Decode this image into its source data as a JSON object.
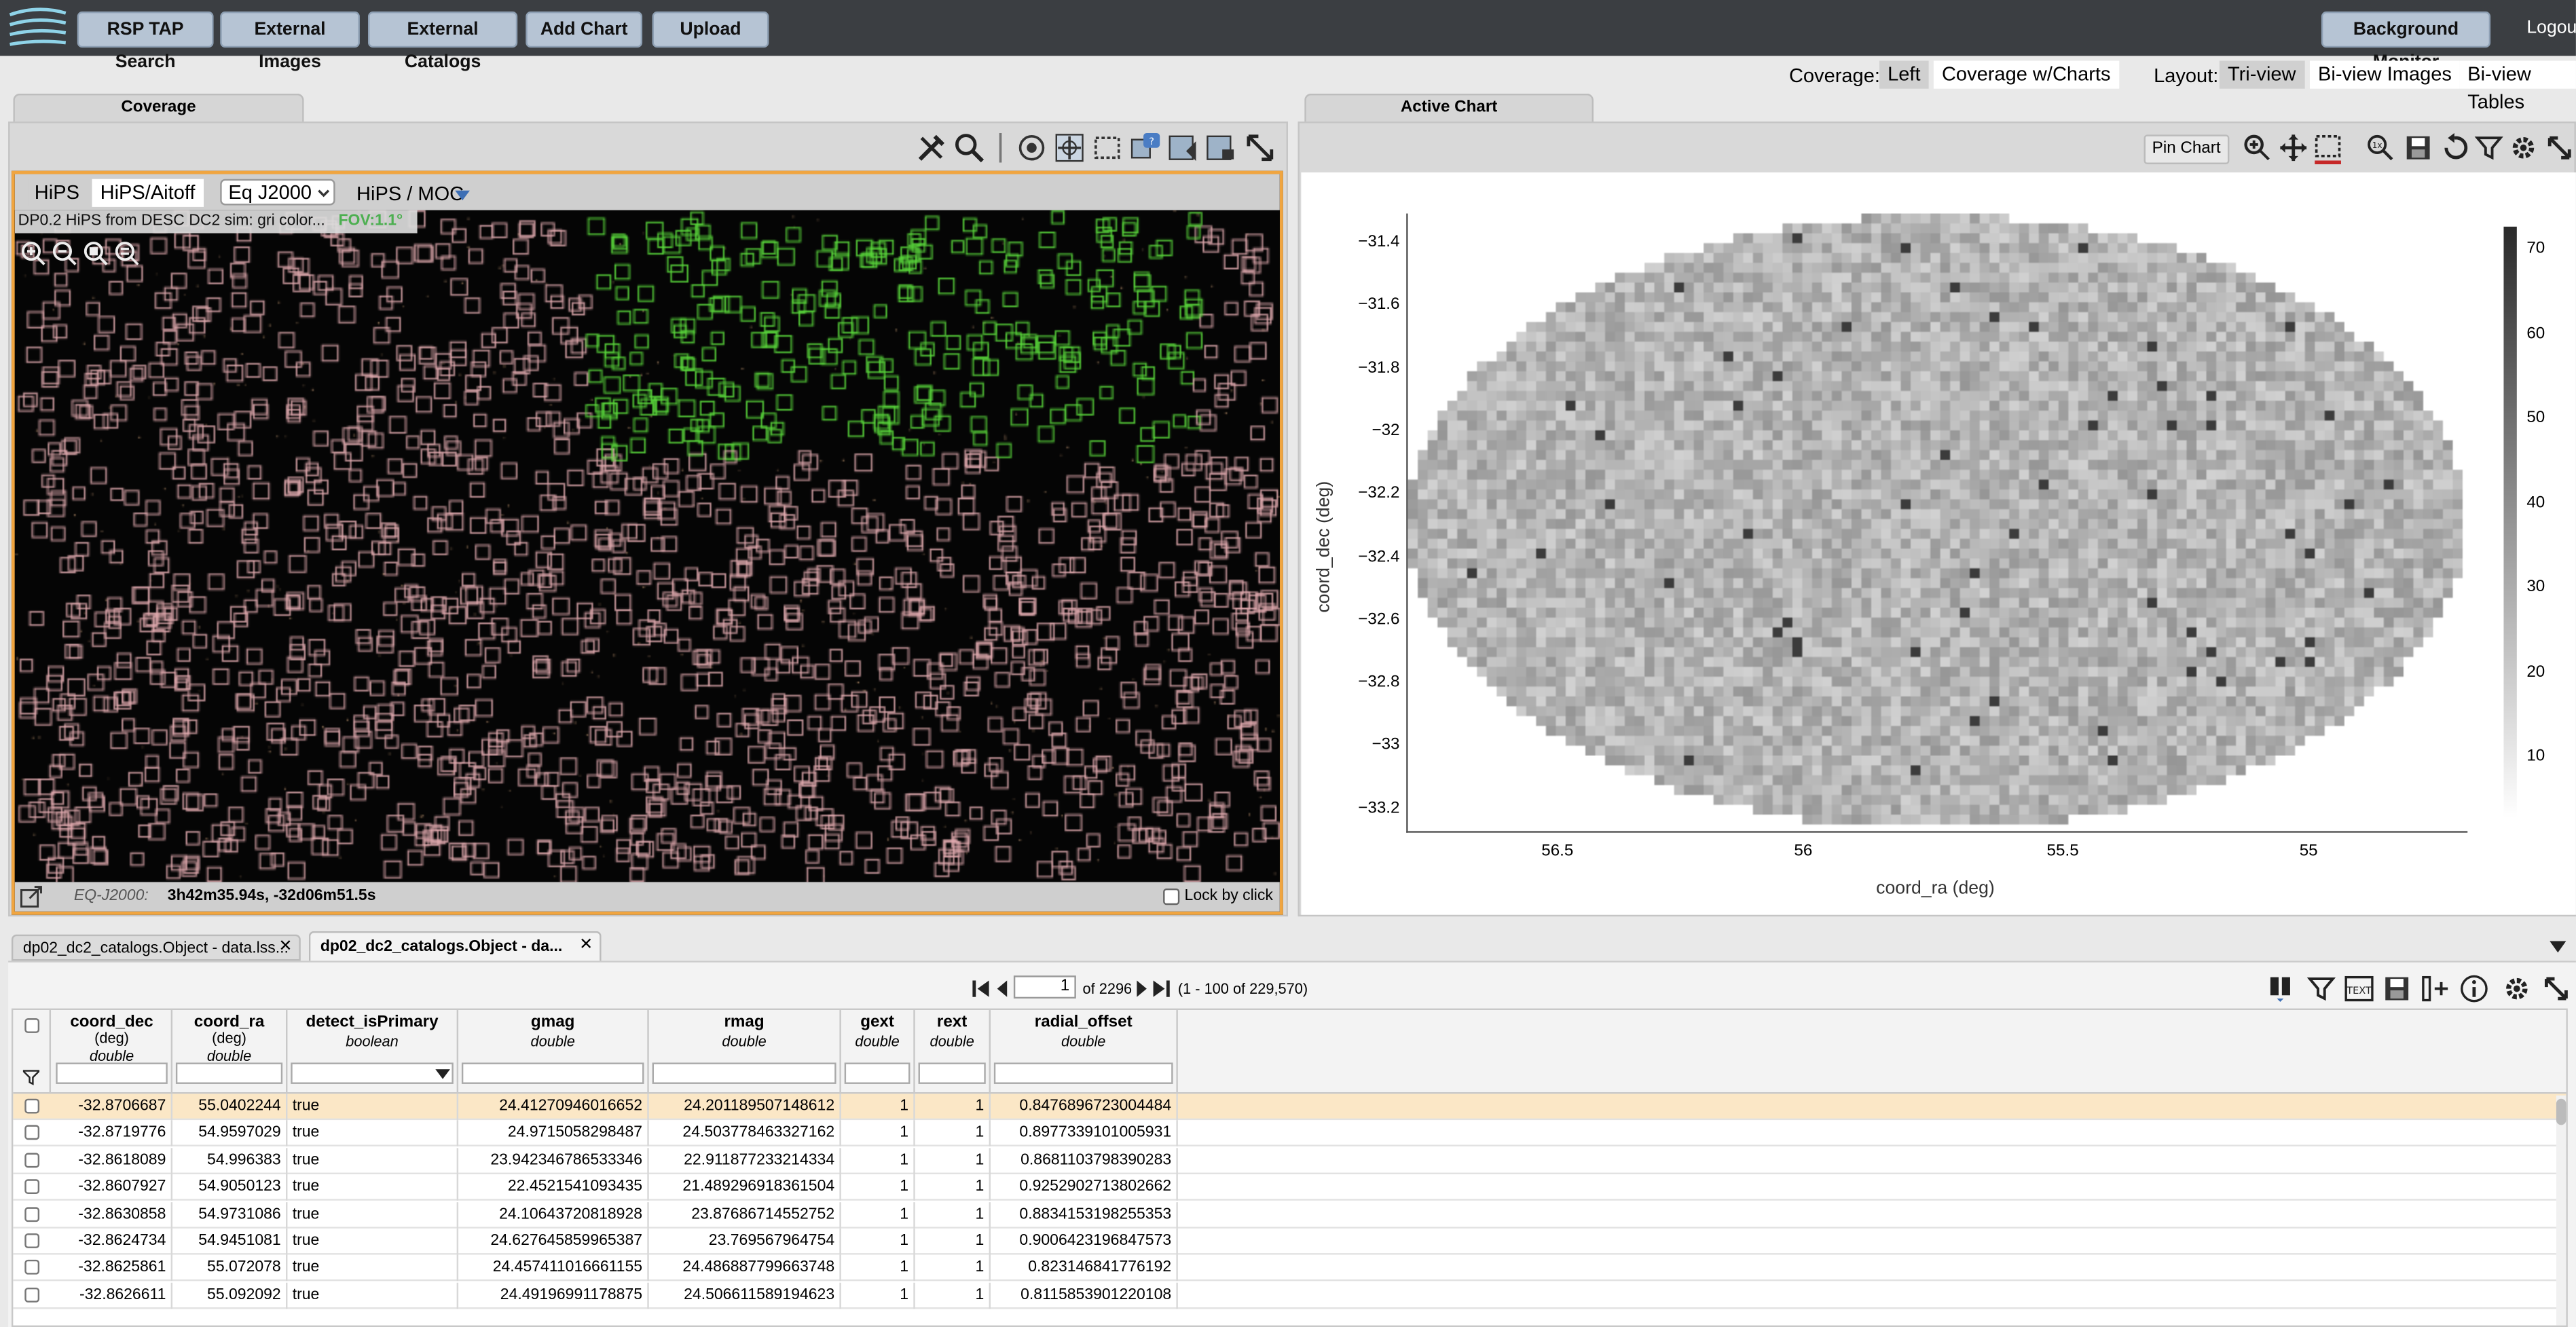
{
  "toolbar": {
    "rsp": "RSP TAP Search",
    "ext_images": "External Images",
    "ext_catalogs": "External Catalogs",
    "add_chart": "Add Chart",
    "upload": "Upload",
    "bg_monitor": "Background Monitor",
    "logout": "Logout"
  },
  "layout_bar": {
    "coverage_label": "Coverage:",
    "cov_left": "Left",
    "cov_charts": "Coverage w/Charts",
    "layout_label": "Layout:",
    "tri": "Tri-view",
    "bi_images": "Bi-view Images",
    "bi_tables": "Bi-view Tables"
  },
  "coverage": {
    "tab": "Coverage",
    "hips": "HiPS",
    "hips_aitoff": "HiPS/Aitoff",
    "coord_sys": "Eq J2000",
    "hips_moc": "HiPS / MOC",
    "title": "DP0.2 HiPS from DESC DC2 sim: gri color...",
    "fov": "FOV:1.1°",
    "eq_label": "EQ-J2000:",
    "eq_value": "3h42m35.94s, -32d06m51.5s",
    "lock": "Lock by click"
  },
  "chart": {
    "tab": "Active Chart",
    "pin": "Pin Chart"
  },
  "chart_data": {
    "type": "heatmap",
    "xlabel": "coord_ra (deg)",
    "ylabel": "coord_dec (deg)",
    "x_ticks": [
      "56.5",
      "56",
      "55.5",
      "55"
    ],
    "y_ticks": [
      "−31.4",
      "−31.6",
      "−31.8",
      "−32",
      "−32.2",
      "−32.4",
      "−32.6",
      "−32.8",
      "−33",
      "−33.2"
    ],
    "colorbar_ticks": [
      "70",
      "60",
      "50",
      "40",
      "30",
      "20",
      "10"
    ],
    "colorscale": [
      "#ffffff",
      "#2a2a2a"
    ],
    "xlim": [
      56.8,
      54.7
    ],
    "ylim": [
      -33.27,
      -31.3
    ],
    "colorbar_range": [
      3,
      73
    ]
  },
  "tables": {
    "tab1": "dp02_dc2_catalogs.Object - data.lss...",
    "tab2": "dp02_dc2_catalogs.Object - da...",
    "page": "1",
    "page_of": "of 2296",
    "range": "(1 - 100 of 229,570)"
  },
  "columns": [
    {
      "name": "coord_dec",
      "unit": "(deg)",
      "type": "double"
    },
    {
      "name": "coord_ra",
      "unit": "(deg)",
      "type": "double"
    },
    {
      "name": "detect_isPrimary",
      "unit": "",
      "type": "boolean"
    },
    {
      "name": "gmag",
      "unit": "",
      "type": "double"
    },
    {
      "name": "rmag",
      "unit": "",
      "type": "double"
    },
    {
      "name": "gext",
      "unit": "",
      "type": "double"
    },
    {
      "name": "rext",
      "unit": "",
      "type": "double"
    },
    {
      "name": "radial_offset",
      "unit": "",
      "type": "double"
    }
  ],
  "rows": [
    [
      "-32.8706687",
      "55.0402244",
      "true",
      "24.41270946016652",
      "24.201189507148612",
      "1",
      "1",
      "0.8476896723004484"
    ],
    [
      "-32.8719776",
      "54.9597029",
      "true",
      "24.9715058298487",
      "24.503778463327162",
      "1",
      "1",
      "0.8977339101005931"
    ],
    [
      "-32.8618089",
      "54.996383",
      "true",
      "23.942346786533346",
      "22.911877233214334",
      "1",
      "1",
      "0.8681103798390283"
    ],
    [
      "-32.8607927",
      "54.9050123",
      "true",
      "22.4521541093435",
      "21.489296918361504",
      "1",
      "1",
      "0.9252902713802662"
    ],
    [
      "-32.8630858",
      "54.9731086",
      "true",
      "24.10643720818928",
      "23.87686714552752",
      "1",
      "1",
      "0.8834153198255353"
    ],
    [
      "-32.8624734",
      "54.9451081",
      "true",
      "24.627645859965387",
      "23.769567964754",
      "1",
      "1",
      "0.9006423196847573"
    ],
    [
      "-32.8625861",
      "55.072078",
      "true",
      "24.457411016661155",
      "24.486887799663748",
      "1",
      "1",
      "0.823146841776192"
    ],
    [
      "-32.8626611",
      "55.092092",
      "true",
      "24.49196991178875",
      "24.506611589194623",
      "1",
      "1",
      "0.8115853901220108"
    ]
  ]
}
